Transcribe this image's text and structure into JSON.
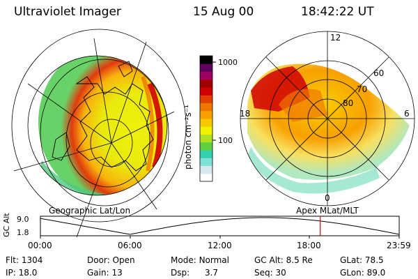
{
  "header": {
    "instrument": "Ultraviolet Imager",
    "date": "15 Aug 00",
    "time": "18:42:22 UT"
  },
  "colorbar": {
    "unit_label": "photon cm⁻²s⁻¹",
    "ticks": [
      {
        "label": "1000",
        "value": 1000
      },
      {
        "label": "100",
        "value": 100
      }
    ],
    "colors": [
      "#ffffff",
      "#d8e8f0",
      "#7fe0d8",
      "#30d0b0",
      "#60d040",
      "#b0e020",
      "#f0f000",
      "#f8c800",
      "#f8a000",
      "#f07800",
      "#e04000",
      "#d00000",
      "#a00000",
      "#a00060",
      "#600060",
      "#000000"
    ]
  },
  "left_panel": {
    "caption": "Geographic Lat/Lon"
  },
  "right_panel": {
    "caption": "Apex MLat/MLT",
    "lat_labels": [
      "60",
      "70",
      "80"
    ],
    "mlt_labels": {
      "top": "12",
      "left": "18",
      "right": "6",
      "bottom": "0"
    }
  },
  "altitude_plot": {
    "ylabel": "GC Alt",
    "y_ticks": [
      "9.0",
      "1.8"
    ],
    "x_ticks": [
      "00:00",
      "06:00",
      "12:00",
      "18:00",
      "23:59"
    ],
    "current_time_marker_color": "#e00000"
  },
  "status": {
    "row1": [
      {
        "key": "Flt:",
        "value": "1304"
      },
      {
        "key": "Door:",
        "value": "Open"
      },
      {
        "key": "Mode:",
        "value": "Normal"
      },
      {
        "key": "GC Alt:",
        "value": "8.5 Re"
      },
      {
        "key": "GLat:",
        "value": "78.5"
      }
    ],
    "row2": [
      {
        "key": "IP:",
        "value": "18.0"
      },
      {
        "key": "Gain:",
        "value": "13"
      },
      {
        "key": "Dsp:",
        "value": "3.7"
      },
      {
        "key": "Seq:",
        "value": "30"
      },
      {
        "key": "GLon:",
        "value": "89.0"
      }
    ]
  }
}
